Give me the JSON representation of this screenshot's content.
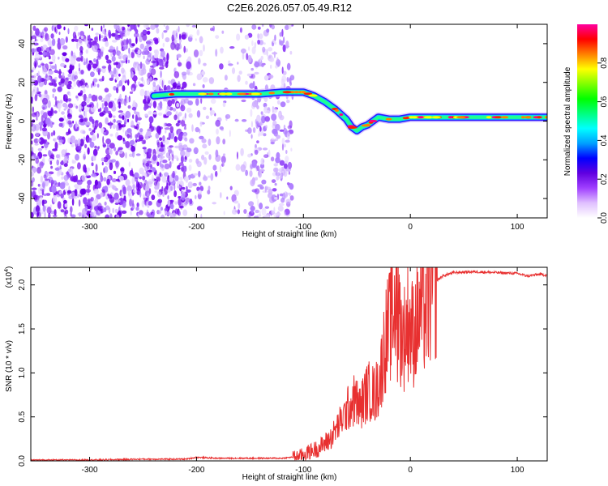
{
  "title": "C2E6.2026.057.05.49.R12",
  "chart_data": [
    {
      "type": "heatmap",
      "xlabel": "Height of straight line (km)",
      "ylabel": "Frequency (Hz)",
      "xlim": [
        -355,
        128
      ],
      "ylim": [
        -50,
        50
      ],
      "xticks": [
        -300,
        -200,
        -100,
        0,
        100
      ],
      "yticks": [
        -40,
        -20,
        0,
        20,
        40
      ],
      "colorbar": {
        "label": "Normalized spectral amplitude",
        "range": [
          0,
          1
        ],
        "ticks": [
          "0.0",
          "0.2",
          "0.4",
          "0.6",
          "0.8"
        ],
        "colors": [
          "#ffffff",
          "#e0c0ff",
          "#a040ff",
          "#6000e0",
          "#0000ff",
          "#00a0ff",
          "#00ffff",
          "#00ff80",
          "#00ff00",
          "#80ff00",
          "#ffff00",
          "#ff8000",
          "#ff0000",
          "#ff00a0"
        ]
      },
      "ridge": {
        "x": [
          -240,
          -220,
          -200,
          -180,
          -160,
          -140,
          -120,
          -100,
          -90,
          -80,
          -70,
          -60,
          -55,
          -50,
          -45,
          -40,
          -35,
          -30,
          -20,
          -10,
          0,
          20,
          50,
          80,
          110,
          128
        ],
        "y": [
          13,
          14,
          14,
          14,
          14,
          14,
          15,
          15,
          13,
          10,
          6,
          1,
          -3,
          -5,
          -3,
          -2,
          0,
          2,
          1,
          1,
          2,
          2,
          2,
          2,
          2,
          2
        ]
      }
    },
    {
      "type": "line",
      "xlabel": "Height of straight line (km)",
      "ylabel": "SNR (10 * v/v)",
      "y_multiplier": "(x10",
      "y_multiplier_exp": "4",
      "xlim": [
        -355,
        128
      ],
      "ylim": [
        0,
        2.2
      ],
      "xticks": [
        -300,
        -200,
        -100,
        0,
        100
      ],
      "yticks": [
        "0.0",
        "0.5",
        "1.0",
        "1.5",
        "2.0"
      ],
      "line_color": "#e83030",
      "x": [
        -355,
        -300,
        -250,
        -210,
        -200,
        -180,
        -150,
        -120,
        -105,
        -95,
        -85,
        -75,
        -65,
        -58,
        -52,
        -47,
        -42,
        -38,
        -33,
        -28,
        -24,
        -20,
        -16,
        -12,
        -9,
        -6,
        -2,
        2,
        6,
        10,
        15,
        20,
        25,
        30,
        40,
        60,
        80,
        100,
        110,
        120,
        128
      ],
      "y": [
        0.01,
        0.01,
        0.02,
        0.02,
        0.04,
        0.03,
        0.03,
        0.03,
        0.05,
        0.1,
        0.15,
        0.25,
        0.45,
        0.6,
        0.7,
        0.6,
        0.75,
        0.8,
        0.75,
        0.95,
        1.35,
        1.5,
        1.7,
        1.6,
        1.5,
        1.4,
        1.6,
        1.45,
        1.55,
        1.75,
        1.7,
        1.95,
        2.05,
        2.1,
        2.14,
        2.15,
        2.14,
        2.13,
        2.1,
        2.12,
        2.11
      ]
    }
  ]
}
